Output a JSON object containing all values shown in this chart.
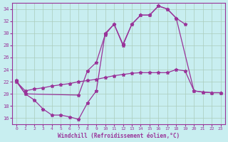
{
  "xlabel": "Windchill (Refroidissement éolien,°C)",
  "bg_color": "#c8eef0",
  "line_color": "#993399",
  "grid_color": "#aaccbb",
  "xlim": [
    -0.5,
    23.5
  ],
  "ylim": [
    15.0,
    35.0
  ],
  "yticks": [
    16,
    18,
    20,
    22,
    24,
    26,
    28,
    30,
    32,
    34
  ],
  "xticks": [
    0,
    1,
    2,
    3,
    4,
    5,
    6,
    7,
    8,
    9,
    10,
    11,
    12,
    13,
    14,
    15,
    16,
    17,
    18,
    19,
    20,
    21,
    22,
    23
  ],
  "curve1_x": [
    0,
    1,
    2,
    3,
    4,
    5,
    6,
    7,
    8,
    9,
    10,
    11,
    12,
    13,
    14,
    15,
    16,
    17,
    18,
    19
  ],
  "curve1_y": [
    22,
    20,
    19,
    17.5,
    16.5,
    16.5,
    16.2,
    15.8,
    18.5,
    20.5,
    30.0,
    31.5,
    28.0,
    31.5,
    33.0,
    33.0,
    34.5,
    34.0,
    32.5,
    31.5
  ],
  "curve2_x": [
    0,
    1,
    2,
    3,
    4,
    5,
    6,
    7,
    8,
    9,
    10,
    11,
    12,
    13,
    14,
    15,
    16,
    17,
    18,
    19,
    20,
    21,
    22,
    23
  ],
  "curve2_y": [
    22,
    20.5,
    20.8,
    21.0,
    21.3,
    21.5,
    21.7,
    22.0,
    22.2,
    22.4,
    22.7,
    23.0,
    23.2,
    23.4,
    23.5,
    23.5,
    23.5,
    23.5,
    24.0,
    23.8,
    20.5,
    20.3,
    20.2,
    20.2
  ],
  "curve3_x": [
    0,
    1,
    7,
    8,
    9,
    10,
    11,
    12,
    13,
    14,
    15,
    16,
    17,
    18,
    20,
    21,
    22,
    23
  ],
  "curve3_y": [
    22.2,
    20.0,
    19.8,
    23.8,
    25.2,
    29.8,
    31.5,
    28.2,
    31.5,
    33.0,
    33.0,
    34.5,
    34.0,
    32.5,
    20.5,
    20.3,
    20.2,
    20.2
  ]
}
